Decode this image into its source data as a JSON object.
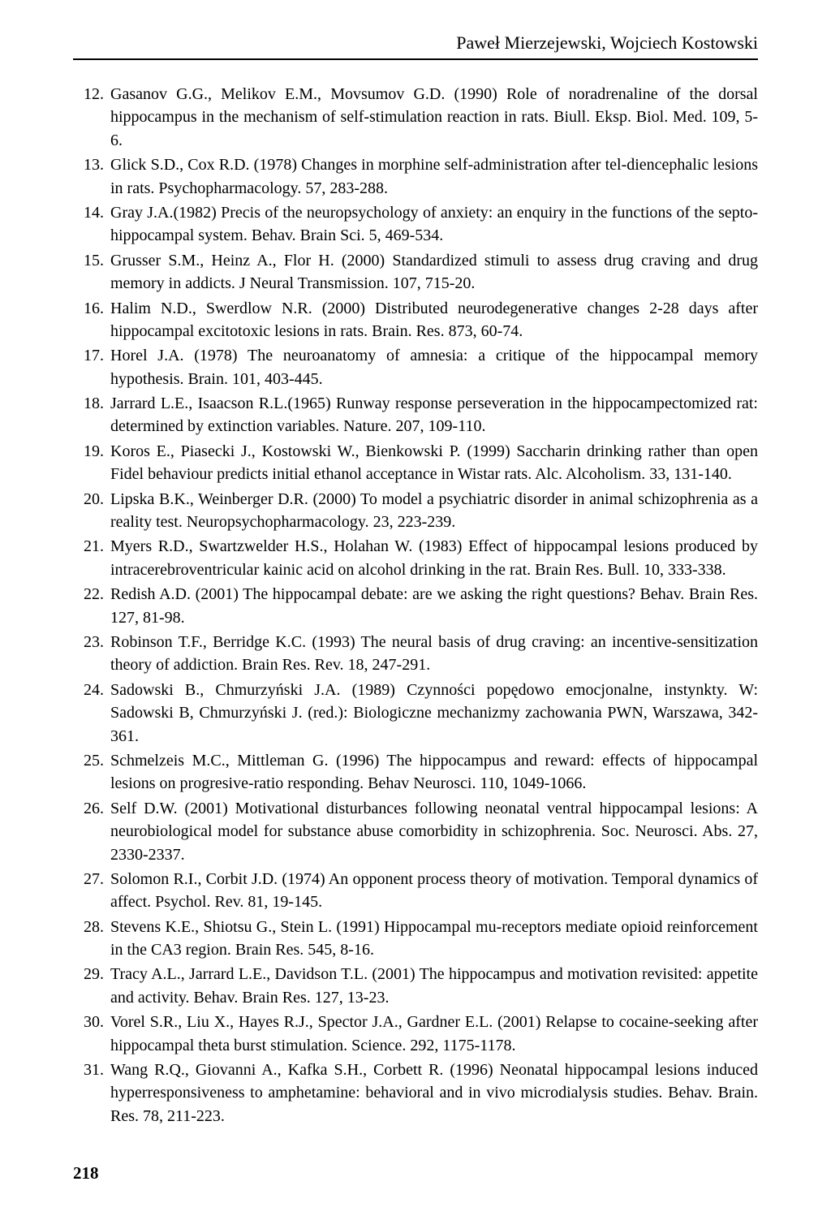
{
  "header": {
    "authors": "Paweł Mierzejewski, Wojciech Kostowski"
  },
  "references": [
    {
      "num": "12.",
      "text": "Gasanov G.G., Melikov E.M., Movsumov G.D. (1990) Role of noradrenaline of the dorsal hippocampus in the mechanism of self-stimulation reaction in rats. Biull. Eksp. Biol. Med. 109, 5-6."
    },
    {
      "num": "13.",
      "text": "Glick S.D., Cox R.D. (1978) Changes in morphine self-administration after tel-diencephalic lesions in rats. Psychopharmacology. 57, 283-288."
    },
    {
      "num": "14.",
      "text": "Gray J.A.(1982) Precis of the neuropsychology of anxiety: an enquiry in the functions of the septo-hippocampal system. Behav. Brain Sci. 5, 469-534."
    },
    {
      "num": "15.",
      "text": "Grusser S.M., Heinz A., Flor H. (2000) Standardized stimuli to assess drug craving and drug memory in addicts. J Neural Transmission. 107, 715-20."
    },
    {
      "num": "16.",
      "text": "Halim N.D., Swerdlow N.R. (2000) Distributed neurodegenerative changes 2-28 days after hippocampal excitotoxic lesions in rats. Brain. Res. 873, 60-74."
    },
    {
      "num": "17.",
      "text": "Horel J.A. (1978) The neuroanatomy of amnesia: a critique of the hippocampal memory hypothesis. Brain. 101, 403-445."
    },
    {
      "num": "18.",
      "text": "Jarrard L.E., Isaacson R.L.(1965) Runway response perseveration in the hippocampectomized rat: determined by extinction variables. Nature. 207, 109-110."
    },
    {
      "num": "19.",
      "text": "Koros E., Piasecki J., Kostowski W., Bienkowski P. (1999) Saccharin drinking rather than open Fidel behaviour predicts initial ethanol acceptance in Wistar rats. Alc. Alcoholism. 33, 131-140."
    },
    {
      "num": "20.",
      "text": "Lipska B.K., Weinberger D.R. (2000) To model a psychiatric disorder in animal schizophrenia as a reality test. Neuropsychopharmacology. 23, 223-239."
    },
    {
      "num": "21.",
      "text": "Myers R.D., Swartzwelder H.S., Holahan W. (1983) Effect of hippocampal lesions produced by intracerebroventricular kainic acid on alcohol drinking in the rat. Brain Res. Bull. 10, 333-338."
    },
    {
      "num": "22.",
      "text": "Redish A.D. (2001) The hippocampal debate: are we asking the right questions? Behav. Brain Res. 127, 81-98."
    },
    {
      "num": "23.",
      "text": "Robinson T.F., Berridge K.C. (1993) The neural basis of drug craving: an incentive-sensitization theory of addiction. Brain Res. Rev. 18, 247-291."
    },
    {
      "num": "24.",
      "text": "Sadowski B., Chmurzyński J.A. (1989) Czynności popędowo emocjonalne, instynkty. W: Sadowski B, Chmurzyński J. (red.): Biologiczne mechanizmy zachowania PWN, Warszawa, 342-361."
    },
    {
      "num": "25.",
      "text": "Schmelzeis M.C., Mittleman G. (1996) The hippocampus and reward: effects of hippocampal lesions on progresive-ratio responding. Behav Neurosci. 110, 1049-1066."
    },
    {
      "num": "26.",
      "text": "Self D.W. (2001) Motivational disturbances following neonatal ventral hippocampal lesions: A neurobiological model for substance abuse comorbidity in schizophrenia. Soc. Neurosci. Abs. 27, 2330-2337."
    },
    {
      "num": "27.",
      "text": "Solomon R.I., Corbit J.D. (1974) An opponent process theory of motivation. Temporal dynamics of affect. Psychol. Rev. 81, 19-145."
    },
    {
      "num": "28.",
      "text": "Stevens K.E., Shiotsu G., Stein L. (1991) Hippocampal mu-receptors mediate opioid reinforcement in the CA3 region. Brain Res. 545, 8-16."
    },
    {
      "num": "29.",
      "text": "Tracy A.L., Jarrard L.E., Davidson T.L. (2001) The hippocampus and motivation revisited: appetite and activity. Behav. Brain Res. 127, 13-23."
    },
    {
      "num": "30.",
      "text": "Vorel S.R., Liu X., Hayes R.J., Spector J.A., Gardner E.L. (2001) Relapse to cocaine-seeking after hippocampal theta burst stimulation. Science. 292, 1175-1178."
    },
    {
      "num": "31.",
      "text": "Wang R.Q., Giovanni A., Kafka S.H., Corbett R. (1996) Neonatal hippocampal lesions induced hyperresponsiveness to amphetamine: behavioral and in vivo microdialysis studies. Behav. Brain. Res. 78, 211-223."
    }
  ],
  "page_number": "218"
}
